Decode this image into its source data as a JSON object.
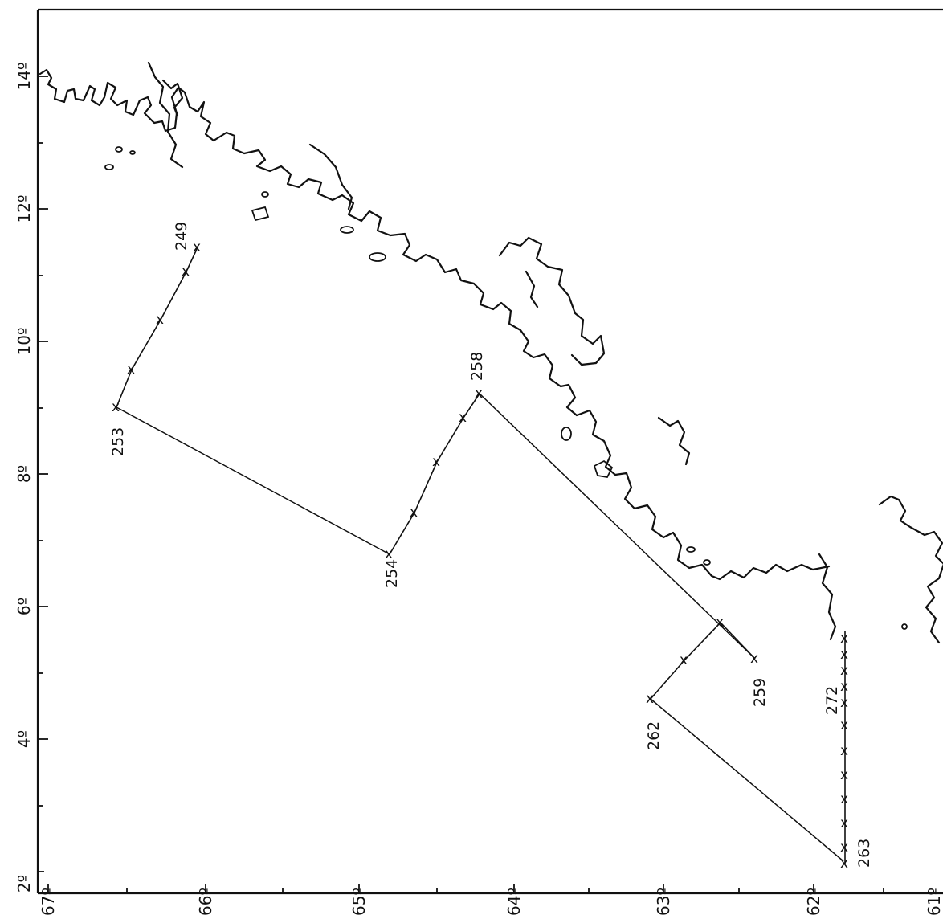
{
  "axes": {
    "y_ticks": [
      "14º",
      "12º",
      "10º",
      "8º",
      "6º",
      "4º",
      "2º"
    ],
    "x_ticks": [
      "67º",
      "66º",
      "65º",
      "64º",
      "63º",
      "62º",
      "61º"
    ]
  },
  "stations": [
    {
      "id": "249",
      "label": "249"
    },
    {
      "id": "253",
      "label": "253"
    },
    {
      "id": "254",
      "label": "254"
    },
    {
      "id": "258",
      "label": "258"
    },
    {
      "id": "259",
      "label": "259"
    },
    {
      "id": "262",
      "label": "262"
    },
    {
      "id": "263",
      "label": "263"
    },
    {
      "id": "272",
      "label": "272"
    }
  ],
  "marker_symbol": "x"
}
